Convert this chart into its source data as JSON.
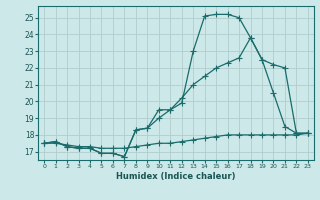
{
  "xlabel": "Humidex (Indice chaleur)",
  "background_color": "#cde8e8",
  "grid_color": "#b0cccc",
  "line_color": "#1a6b6b",
  "xlim": [
    -0.5,
    23.5
  ],
  "ylim": [
    16.5,
    25.7
  ],
  "yticks": [
    17,
    18,
    19,
    20,
    21,
    22,
    23,
    24,
    25
  ],
  "xticks": [
    0,
    1,
    2,
    3,
    4,
    5,
    6,
    7,
    8,
    9,
    10,
    11,
    12,
    13,
    14,
    15,
    16,
    17,
    18,
    19,
    20,
    21,
    22,
    23
  ],
  "line1_x": [
    0,
    1,
    2,
    3,
    4,
    5,
    6,
    7,
    8,
    9,
    10,
    11,
    12,
    13,
    14,
    15,
    16,
    17,
    18,
    19,
    20,
    21,
    22,
    23
  ],
  "line1_y": [
    17.5,
    17.6,
    17.3,
    17.2,
    17.2,
    16.9,
    16.9,
    16.7,
    18.3,
    18.4,
    19.5,
    19.5,
    19.9,
    23.0,
    25.1,
    25.2,
    25.2,
    25.0,
    23.8,
    22.5,
    20.5,
    18.5,
    18.1,
    18.1
  ],
  "line2_x": [
    0,
    1,
    2,
    3,
    4,
    5,
    6,
    7,
    8,
    9,
    10,
    11,
    12,
    13,
    14,
    15,
    16,
    17,
    18,
    19,
    20,
    21,
    22,
    23
  ],
  "line2_y": [
    17.5,
    17.6,
    17.3,
    17.2,
    17.2,
    16.9,
    16.9,
    16.7,
    18.3,
    18.4,
    19.0,
    19.5,
    20.2,
    21.0,
    21.5,
    22.0,
    22.3,
    22.6,
    23.8,
    22.5,
    22.2,
    22.0,
    18.1,
    18.1
  ],
  "line3_x": [
    0,
    1,
    2,
    3,
    4,
    5,
    6,
    7,
    8,
    9,
    10,
    11,
    12,
    13,
    14,
    15,
    16,
    17,
    18,
    19,
    20,
    21,
    22,
    23
  ],
  "line3_y": [
    17.5,
    17.5,
    17.4,
    17.3,
    17.3,
    17.2,
    17.2,
    17.2,
    17.3,
    17.4,
    17.5,
    17.5,
    17.6,
    17.7,
    17.8,
    17.9,
    18.0,
    18.0,
    18.0,
    18.0,
    18.0,
    18.0,
    18.0,
    18.1
  ]
}
